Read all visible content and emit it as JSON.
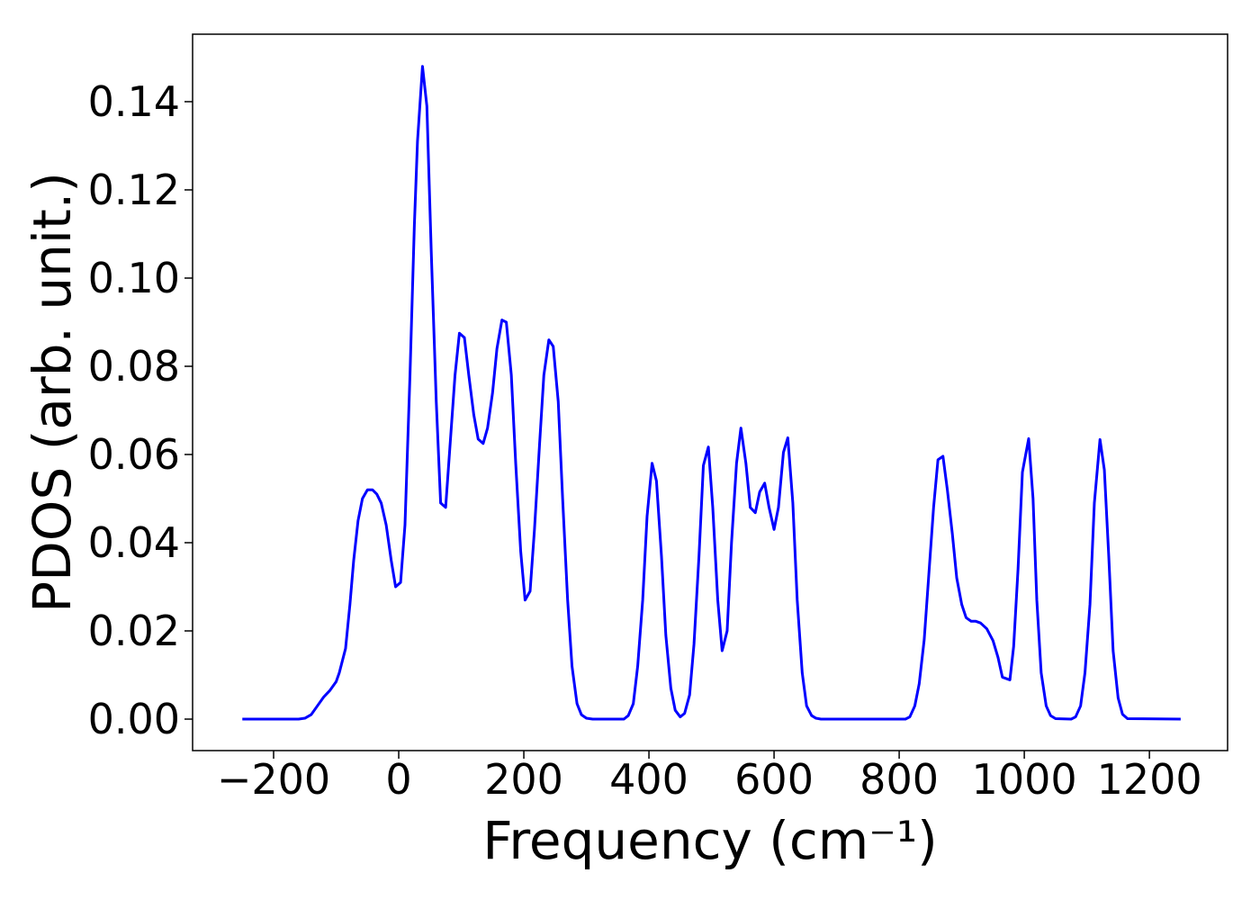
{
  "chart_data": {
    "type": "line",
    "xlabel": "Frequency (cm⁻¹)",
    "ylabel": "PDOS (arb. unit.)",
    "xlim": [
      -329.5,
      1325
    ],
    "ylim": [
      -0.00714,
      0.1553
    ],
    "xticks": [
      {
        "value": -200,
        "label": "−200"
      },
      0,
      200,
      400,
      600,
      800,
      1000,
      1200
    ],
    "yticks": [
      {
        "value": 0,
        "label": "0.00"
      },
      {
        "value": 0.02,
        "label": "0.02"
      },
      {
        "value": 0.04,
        "label": "0.04"
      },
      {
        "value": 0.06,
        "label": "0.06"
      },
      {
        "value": 0.08,
        "label": "0.08"
      },
      {
        "value": 0.1,
        "label": "0.10"
      },
      {
        "value": 0.12,
        "label": "0.12"
      },
      {
        "value": 0.14,
        "label": "0.14"
      }
    ],
    "x": [
      -250,
      -160,
      -150,
      -140,
      -130,
      -120,
      -110,
      -100,
      -95,
      -85,
      -78,
      -72,
      -65,
      -58,
      -50,
      -42,
      -35,
      -28,
      -20,
      -12,
      -5,
      3,
      10,
      18,
      25,
      30,
      38,
      45,
      52,
      60,
      67,
      75,
      82,
      90,
      97,
      105,
      112,
      120,
      127,
      135,
      142,
      150,
      157,
      165,
      172,
      180,
      187,
      195,
      202,
      210,
      217,
      225,
      232,
      240,
      247,
      255,
      262,
      270,
      277,
      285,
      292,
      300,
      310,
      360,
      367,
      375,
      382,
      390,
      397,
      405,
      412,
      420,
      427,
      435,
      442,
      450,
      457,
      465,
      472,
      480,
      487,
      495,
      502,
      510,
      517,
      525,
      532,
      540,
      547,
      555,
      562,
      570,
      577,
      585,
      592,
      600,
      607,
      615,
      622,
      630,
      637,
      645,
      652,
      660,
      667,
      675,
      810,
      817,
      825,
      832,
      840,
      847,
      855,
      862,
      870,
      877,
      885,
      892,
      900,
      907,
      915,
      922,
      930,
      940,
      950,
      958,
      965,
      977,
      983,
      990,
      997,
      1007,
      1014,
      1020,
      1027,
      1035,
      1042,
      1050,
      1075,
      1082,
      1090,
      1097,
      1105,
      1112,
      1121,
      1128,
      1135,
      1142,
      1150,
      1157,
      1165,
      1250
    ],
    "series": [
      {
        "color": "#0000ff",
        "values": [
          0,
          0,
          0.0002,
          0.001,
          0.003,
          0.005,
          0.0065,
          0.0085,
          0.0105,
          0.016,
          0.026,
          0.036,
          0.045,
          0.05,
          0.052,
          0.052,
          0.051,
          0.049,
          0.044,
          0.036,
          0.03,
          0.031,
          0.044,
          0.078,
          0.112,
          0.131,
          0.148,
          0.139,
          0.106,
          0.072,
          0.049,
          0.048,
          0.062,
          0.078,
          0.0875,
          0.0865,
          0.078,
          0.069,
          0.0635,
          0.0625,
          0.066,
          0.074,
          0.084,
          0.0905,
          0.09,
          0.078,
          0.058,
          0.038,
          0.027,
          0.029,
          0.043,
          0.062,
          0.078,
          0.086,
          0.0845,
          0.072,
          0.05,
          0.027,
          0.012,
          0.0035,
          0.001,
          0.0002,
          0,
          0,
          0.0008,
          0.0035,
          0.012,
          0.027,
          0.046,
          0.058,
          0.054,
          0.037,
          0.019,
          0.007,
          0.002,
          0.0005,
          0.0013,
          0.0055,
          0.017,
          0.037,
          0.0575,
          0.0617,
          0.048,
          0.027,
          0.0155,
          0.02,
          0.04,
          0.058,
          0.066,
          0.058,
          0.048,
          0.0468,
          0.0515,
          0.0535,
          0.048,
          0.043,
          0.048,
          0.0605,
          0.0638,
          0.049,
          0.027,
          0.0105,
          0.003,
          0.0008,
          0.0002,
          0,
          0,
          0.0005,
          0.003,
          0.008,
          0.018,
          0.032,
          0.048,
          0.0588,
          0.0596,
          0.052,
          0.042,
          0.032,
          0.026,
          0.023,
          0.0222,
          0.0222,
          0.0218,
          0.0205,
          0.0178,
          0.014,
          0.0095,
          0.0089,
          0.0165,
          0.034,
          0.056,
          0.0636,
          0.05,
          0.027,
          0.0105,
          0.003,
          0.0008,
          0.0001,
          0,
          0.0005,
          0.003,
          0.0105,
          0.026,
          0.049,
          0.0634,
          0.0565,
          0.037,
          0.0155,
          0.0048,
          0.0011,
          0.0001,
          0
        ]
      }
    ]
  }
}
